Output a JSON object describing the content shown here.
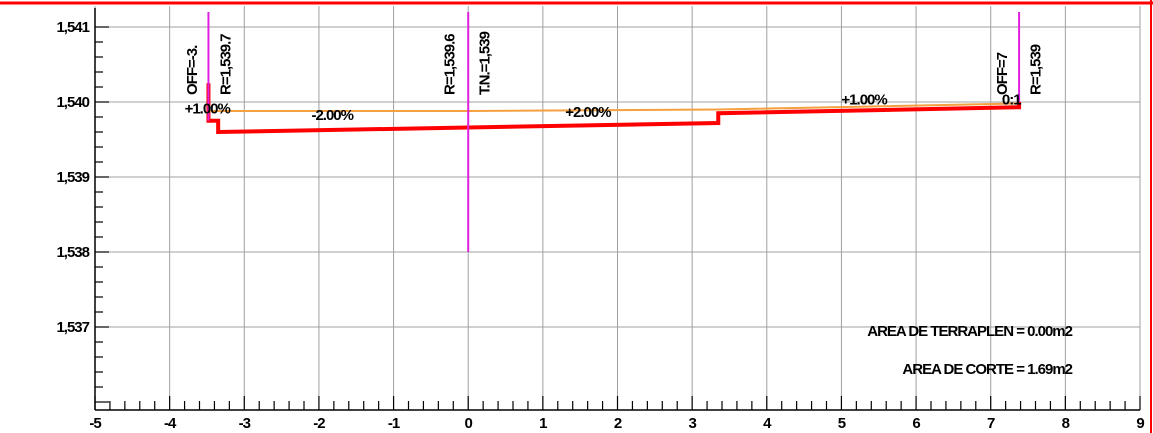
{
  "chart_data": {
    "type": "line",
    "xlim": [
      -5,
      9
    ],
    "ylim": [
      1536,
      1541.2
    ],
    "x_ticks": [
      "-5",
      "-4",
      "-3",
      "-2",
      "-1",
      "0",
      "1",
      "2",
      "3",
      "4",
      "5",
      "6",
      "7",
      "8",
      "9"
    ],
    "y_ticks": [
      {
        "value": 1541,
        "label": "1,541"
      },
      {
        "value": 1540,
        "label": "1,540"
      },
      {
        "value": 1539,
        "label": "1,539"
      },
      {
        "value": 1538,
        "label": "1,538"
      },
      {
        "value": 1537,
        "label": "1,537"
      }
    ],
    "grid": true,
    "colors": {
      "grid": "#a0a0a0",
      "frame": "#ff0000",
      "terrain": "#ff0000",
      "design": "#f5a040",
      "marker": "#e020e0",
      "axis": "#000000"
    },
    "series": [
      {
        "key": "terrain",
        "x": [
          -3.48,
          -3.48,
          -3.35,
          -3.35,
          0,
          3.35,
          3.35,
          7.38,
          7.38
        ],
        "y": [
          1540.25,
          1539.75,
          1539.75,
          1539.6,
          1539.66,
          1539.72,
          1539.85,
          1539.93,
          1540.0
        ]
      },
      {
        "key": "design",
        "x": [
          -3.48,
          0,
          3.35,
          7.38
        ],
        "y": [
          1539.88,
          1539.88,
          1539.9,
          1539.98
        ]
      }
    ],
    "markers": [
      {
        "x": -3.48,
        "y_top": 1541.2,
        "y_bottom": 1539.75
      },
      {
        "x": 0,
        "y_top": 1541.2,
        "y_bottom": 1538.0
      },
      {
        "x": 7.38,
        "y_top": 1541.2,
        "y_bottom": 1540.0
      }
    ],
    "slope_labels": [
      {
        "text": "+1.00%",
        "x": -3.8,
        "y": 1539.85
      },
      {
        "text": "-2.00%",
        "x": -2.1,
        "y": 1539.76
      },
      {
        "text": "+2.00%",
        "x": 1.3,
        "y": 1539.8
      },
      {
        "text": "+1.00%",
        "x": 5.0,
        "y": 1539.97
      },
      {
        "text": "0:1",
        "x": 7.15,
        "y": 1539.97
      }
    ],
    "vertical_labels": [
      {
        "text": "OFF=-3.",
        "x": -3.7
      },
      {
        "text": "R=1,539.7",
        "x": -3.25
      },
      {
        "text": "R=1,539.6",
        "x": -0.25
      },
      {
        "text": "T.N.=1,539",
        "x": 0.22
      },
      {
        "text": "OFF=7",
        "x": 7.15
      },
      {
        "text": "R=1,539",
        "x": 7.6
      }
    ],
    "area_labels": [
      "AREA DE TERRAPLEN = 0.00m2",
      "AREA DE CORTE = 1.69m2"
    ]
  }
}
